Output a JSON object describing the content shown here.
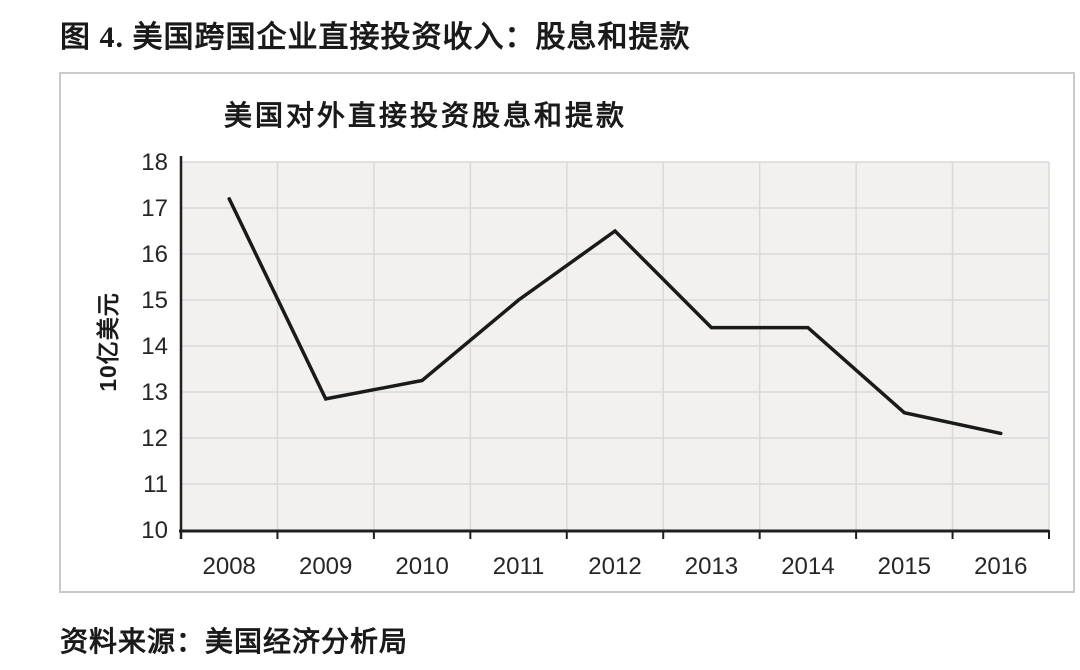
{
  "page": {
    "figure_title": "图 4. 美国跨国企业直接投资收入：股息和提款",
    "source_note": "资料来源：美国经济分析局"
  },
  "chart_data": {
    "type": "line",
    "title": "美国对外直接投资股息和提款",
    "xlabel": "",
    "ylabel": "10亿美元",
    "categories": [
      "2008",
      "2009",
      "2010",
      "2011",
      "2012",
      "2013",
      "2014",
      "2015",
      "2016"
    ],
    "series": [
      {
        "name": "美国对外直接投资股息和提款",
        "values": [
          17.2,
          12.85,
          13.25,
          15.0,
          16.5,
          14.4,
          14.4,
          12.55,
          12.1
        ]
      }
    ],
    "ylim": [
      10,
      18
    ],
    "y_ticks": [
      10,
      11,
      12,
      13,
      14,
      15,
      16,
      17,
      18
    ],
    "grid": true,
    "legend": "none",
    "colors": {
      "line": "#1a1a1a",
      "grid": "#d9d9d9",
      "plot_bg": "#f2f1ef",
      "axis": "#1f1f1f",
      "text": "#262626",
      "box_border": "#cccac8"
    }
  }
}
